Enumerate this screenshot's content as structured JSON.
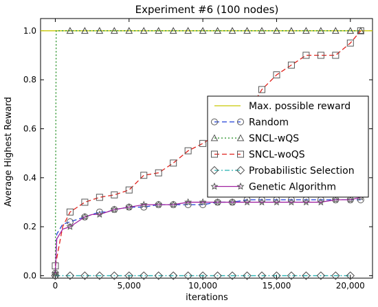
{
  "chart_data": {
    "type": "line",
    "title": "Experiment #6 (100 nodes)",
    "xlabel": "iterations",
    "ylabel": "Average Highest Reward",
    "xlim": [
      -1000,
      21500
    ],
    "ylim": [
      -0.01,
      1.05
    ],
    "xticks": [
      0,
      5000,
      10000,
      15000,
      20000
    ],
    "xtick_labels": [
      "0",
      "5,000",
      "10,000",
      "15,000",
      "20,000"
    ],
    "yticks": [
      0.0,
      0.2,
      0.4,
      0.6,
      0.8,
      1.0
    ],
    "ytick_labels": [
      "0.0",
      "0.2",
      "0.4",
      "0.6",
      "0.8",
      "1.0"
    ],
    "grid": false,
    "legend_position": "center-right",
    "series": [
      {
        "name": "Max. possible reward",
        "color": "#c8c800",
        "linestyle": "solid",
        "marker": "none",
        "x": [
          -1000,
          21500
        ],
        "y": [
          1.0,
          1.0
        ]
      },
      {
        "name": "Random",
        "color": "#1f3fd8",
        "linestyle": "dashed",
        "marker": "circle",
        "x": [
          0,
          100,
          300,
          500,
          1000,
          1500,
          2000,
          2500,
          3000,
          3500,
          4000,
          5000,
          6000,
          7000,
          8000,
          9000,
          10000,
          11000,
          12000,
          13000,
          14000,
          15000,
          16000,
          17000,
          18000,
          19000,
          20000,
          20700
        ],
        "y": [
          0.01,
          0.17,
          0.19,
          0.21,
          0.22,
          0.23,
          0.24,
          0.25,
          0.26,
          0.26,
          0.27,
          0.28,
          0.28,
          0.29,
          0.29,
          0.29,
          0.29,
          0.3,
          0.3,
          0.31,
          0.31,
          0.31,
          0.31,
          0.31,
          0.31,
          0.31,
          0.31,
          0.31
        ]
      },
      {
        "name": "SNCL-wQS",
        "color": "#1a8a1a",
        "linestyle": "dotted",
        "marker": "triangle",
        "x": [
          0,
          60,
          1000,
          2000,
          3000,
          4000,
          5000,
          6000,
          7000,
          8000,
          9000,
          10000,
          11000,
          12000,
          13000,
          14000,
          15000,
          16000,
          17000,
          18000,
          19000,
          20000,
          20700
        ],
        "y": [
          0.0,
          1.0,
          1.0,
          1.0,
          1.0,
          1.0,
          1.0,
          1.0,
          1.0,
          1.0,
          1.0,
          1.0,
          1.0,
          1.0,
          1.0,
          1.0,
          1.0,
          1.0,
          1.0,
          1.0,
          1.0,
          1.0,
          1.0
        ]
      },
      {
        "name": "SNCL-woQS",
        "color": "#e0201a",
        "linestyle": "dashed",
        "marker": "square",
        "x": [
          0,
          500,
          1000,
          2000,
          3000,
          4000,
          5000,
          6000,
          7000,
          8000,
          9000,
          10000,
          11000,
          12000,
          13000,
          14000,
          15000,
          16000,
          17000,
          18000,
          19000,
          20000,
          20700
        ],
        "y": [
          0.04,
          0.2,
          0.26,
          0.3,
          0.32,
          0.33,
          0.35,
          0.41,
          0.42,
          0.46,
          0.51,
          0.54,
          0.58,
          0.62,
          0.66,
          0.76,
          0.82,
          0.86,
          0.9,
          0.9,
          0.9,
          0.95,
          1.0
        ]
      },
      {
        "name": "Probabilistic Selection",
        "color": "#20b0b0",
        "linestyle": "dashdot",
        "marker": "diamond",
        "x": [
          0,
          1000,
          2000,
          3000,
          4000,
          5000,
          6000,
          7000,
          8000,
          9000,
          10000,
          11000,
          12000,
          13000,
          14000,
          15000,
          16000,
          17000,
          18000,
          19000,
          20000
        ],
        "y": [
          0.0,
          0.0,
          0.0,
          0.0,
          0.0,
          0.0,
          0.0,
          0.0,
          0.0,
          0.0,
          0.0,
          0.0,
          0.0,
          0.0,
          0.0,
          0.0,
          0.0,
          0.0,
          0.0,
          0.0,
          0.0
        ]
      },
      {
        "name": "Genetic Algorithm",
        "color": "#a020a0",
        "linestyle": "solid",
        "marker": "star",
        "x": [
          0,
          100,
          300,
          500,
          1000,
          1500,
          2000,
          2500,
          3000,
          3500,
          4000,
          5000,
          6000,
          7000,
          8000,
          9000,
          10000,
          11000,
          12000,
          13000,
          14000,
          15000,
          16000,
          17000,
          18000,
          19000,
          20000,
          20700
        ],
        "y": [
          0.01,
          0.15,
          0.17,
          0.19,
          0.2,
          0.22,
          0.24,
          0.25,
          0.25,
          0.26,
          0.27,
          0.28,
          0.29,
          0.29,
          0.29,
          0.3,
          0.3,
          0.3,
          0.3,
          0.3,
          0.3,
          0.3,
          0.3,
          0.3,
          0.3,
          0.31,
          0.31,
          0.32
        ]
      }
    ]
  }
}
